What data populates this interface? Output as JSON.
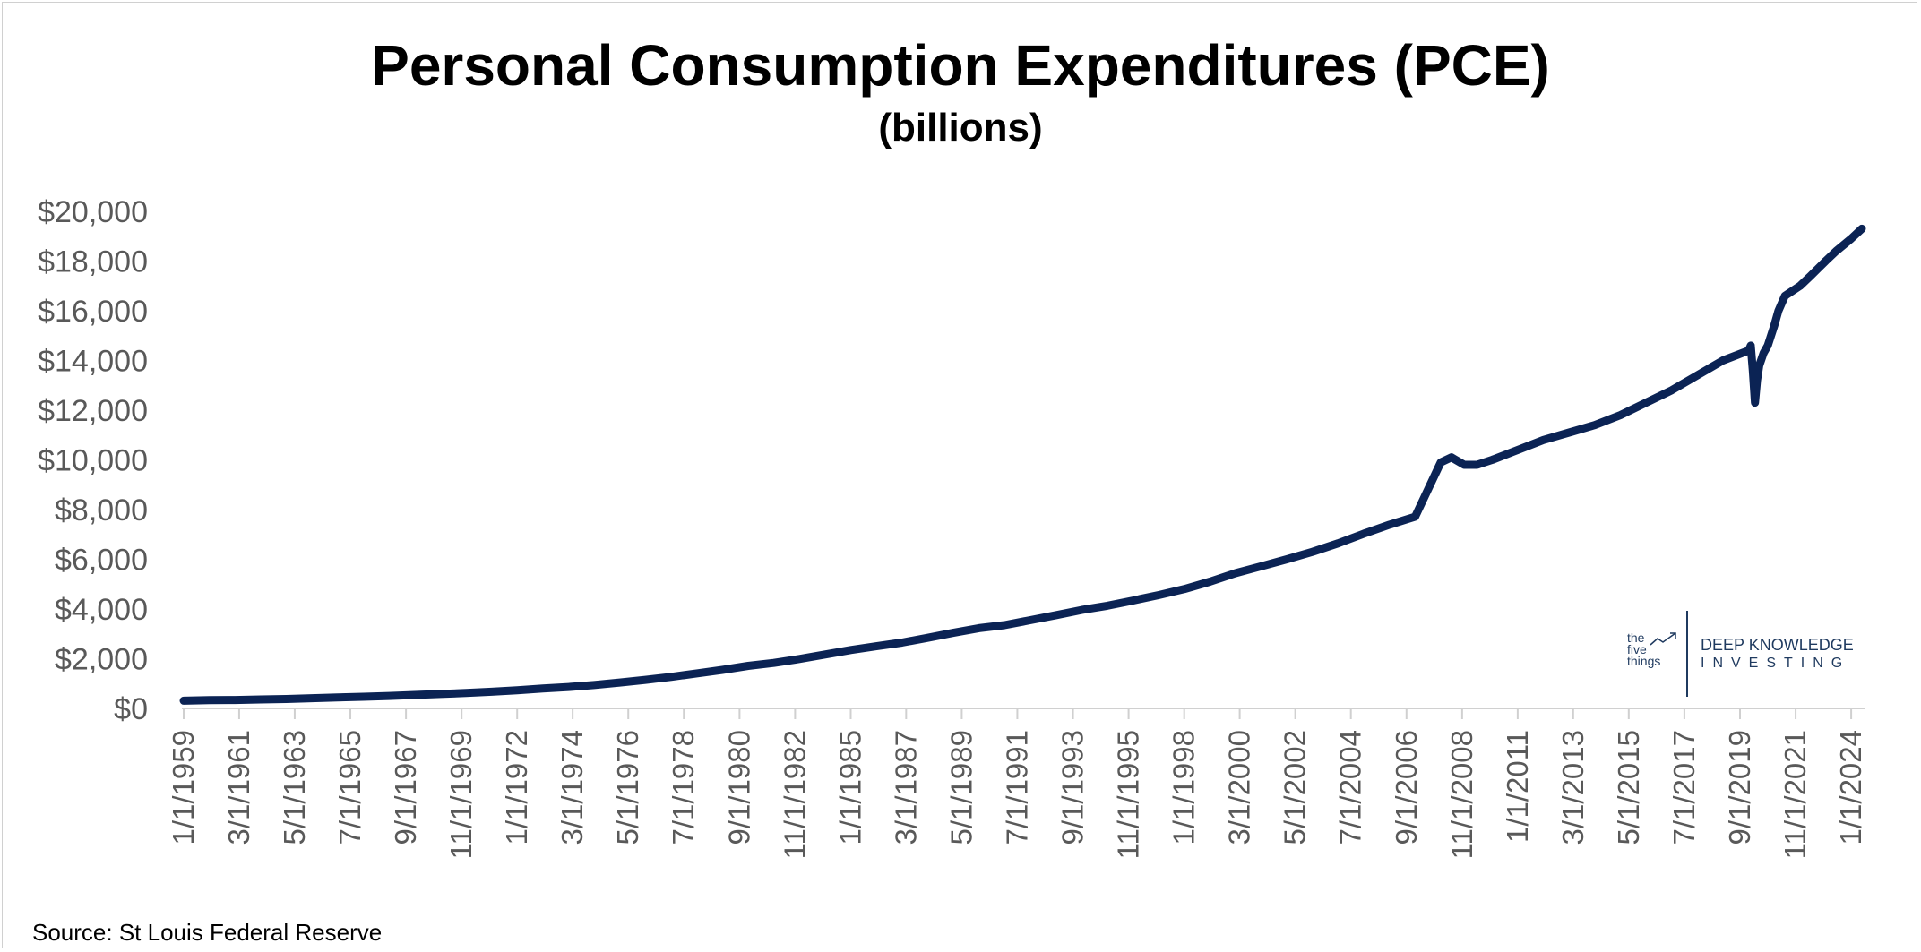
{
  "chart_data": {
    "type": "line",
    "title": "Personal Consumption Expenditures (PCE)",
    "subtitle": "(billions)",
    "xlabel": "",
    "ylabel": "",
    "ylim": [
      0,
      20000
    ],
    "yticks": [
      "$0",
      "$2,000",
      "$4,000",
      "$6,000",
      "$8,000",
      "$10,000",
      "$12,000",
      "$14,000",
      "$16,000",
      "$18,000",
      "$20,000"
    ],
    "xticks": [
      "1/1/1959",
      "3/1/1961",
      "5/1/1963",
      "7/1/1965",
      "9/1/1967",
      "11/1/1969",
      "1/1/1972",
      "3/1/1974",
      "5/1/1976",
      "7/1/1978",
      "9/1/1980",
      "11/1/1982",
      "1/1/1985",
      "3/1/1987",
      "5/1/1989",
      "7/1/1991",
      "9/1/1993",
      "11/1/1995",
      "1/1/1998",
      "3/1/2000",
      "5/1/2002",
      "7/1/2004",
      "9/1/2006",
      "11/1/2008",
      "1/1/2011",
      "3/1/2013",
      "5/1/2015",
      "7/1/2017",
      "9/1/2019",
      "11/1/2021",
      "1/1/2024"
    ],
    "grid": false,
    "legend": "none",
    "series": [
      {
        "color": "#0b2354",
        "x": [
          "1959-01-01",
          "1960-01-01",
          "1961-01-01",
          "1962-01-01",
          "1963-01-01",
          "1964-01-01",
          "1965-01-01",
          "1966-01-01",
          "1967-01-01",
          "1968-01-01",
          "1969-01-01",
          "1970-01-01",
          "1971-01-01",
          "1972-01-01",
          "1973-01-01",
          "1974-01-01",
          "1975-01-01",
          "1976-01-01",
          "1977-01-01",
          "1978-01-01",
          "1979-01-01",
          "1980-01-01",
          "1981-01-01",
          "1982-01-01",
          "1983-01-01",
          "1984-01-01",
          "1985-01-01",
          "1986-01-01",
          "1987-01-01",
          "1988-01-01",
          "1989-01-01",
          "1990-01-01",
          "1991-01-01",
          "1992-01-01",
          "1993-01-01",
          "1994-01-01",
          "1995-01-01",
          "1996-01-01",
          "1997-01-01",
          "1998-01-01",
          "1999-01-01",
          "2000-01-01",
          "2001-01-01",
          "2002-01-01",
          "2003-01-01",
          "2004-01-01",
          "2005-01-01",
          "2006-01-01",
          "2007-01-01",
          "2008-01-01",
          "2008-06-01",
          "2008-12-01",
          "2009-06-01",
          "2010-01-01",
          "2011-01-01",
          "2012-01-01",
          "2013-01-01",
          "2014-01-01",
          "2015-01-01",
          "2016-01-01",
          "2017-01-01",
          "2018-01-01",
          "2019-01-01",
          "2020-01-01",
          "2020-02-01",
          "2020-03-01",
          "2020-04-01",
          "2020-05-01",
          "2020-06-01",
          "2020-08-01",
          "2020-10-01",
          "2021-01-01",
          "2021-03-01",
          "2021-06-01",
          "2022-01-01",
          "2022-06-01",
          "2023-01-01",
          "2023-06-01",
          "2024-01-01",
          "2024-06-01"
        ],
        "values": [
          310,
          330,
          340,
          360,
          380,
          410,
          440,
          470,
          500,
          540,
          580,
          620,
          670,
          730,
          800,
          860,
          940,
          1040,
          1150,
          1270,
          1410,
          1550,
          1710,
          1830,
          1990,
          2170,
          2350,
          2500,
          2650,
          2840,
          3040,
          3230,
          3350,
          3550,
          3750,
          3960,
          4130,
          4340,
          4560,
          4800,
          5100,
          5440,
          5720,
          6000,
          6300,
          6640,
          7030,
          7390,
          7710,
          9900,
          10100,
          9800,
          9800,
          10000,
          10400,
          10800,
          11100,
          11400,
          11800,
          12300,
          12800,
          13400,
          14000,
          14400,
          14600,
          13600,
          12300,
          13200,
          13800,
          14300,
          14600,
          15400,
          16000,
          16600,
          17000,
          17400,
          18000,
          18400,
          18900,
          19300
        ]
      }
    ]
  },
  "source": "Source: St Louis Federal Reserve",
  "logo": {
    "mark_lines": [
      "the",
      "five",
      "things"
    ],
    "line1": "DEEP KNOWLEDGE",
    "line2": "INVESTING"
  }
}
